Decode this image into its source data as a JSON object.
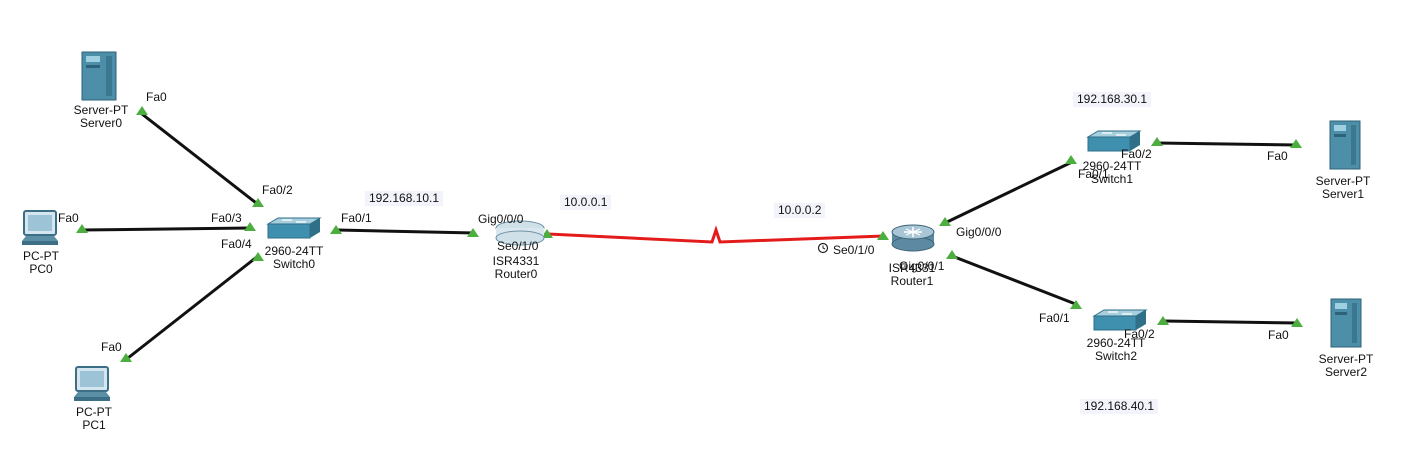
{
  "colors": {
    "cable": "#111111",
    "serial": "#e31b1b",
    "port_ok": "#4cae3e",
    "server_body": "#4d8ea8",
    "switch_body": "#3f8fae",
    "router_body": "#6f93a8"
  },
  "devices": {
    "server0": {
      "type": "Server-PT",
      "name": "Server0",
      "icon": "server-icon"
    },
    "pc0": {
      "type": "PC-PT",
      "name": "PC0",
      "icon": "pc-icon"
    },
    "pc1": {
      "type": "PC-PT",
      "name": "PC1",
      "icon": "pc-icon"
    },
    "switch0": {
      "type": "2960-24TT",
      "name": "Switch0",
      "icon": "switch-icon"
    },
    "router0": {
      "type": "ISR4331",
      "name": "Router0",
      "icon": "router-icon"
    },
    "router1": {
      "type": "ISR4331",
      "name": "Router1",
      "icon": "router-icon"
    },
    "switch1": {
      "type": "2960-24TT",
      "name": "Switch1",
      "icon": "switch-icon"
    },
    "switch2": {
      "type": "2960-24TT",
      "name": "Switch2",
      "icon": "switch-icon"
    },
    "server1": {
      "type": "Server-PT",
      "name": "Server1",
      "icon": "server-icon"
    },
    "server2": {
      "type": "Server-PT",
      "name": "Server2",
      "icon": "server-icon"
    }
  },
  "ports": {
    "server0_fa0": "Fa0",
    "sw0_fa02": "Fa0/2",
    "pc0_fa0": "Fa0",
    "sw0_fa03": "Fa0/3",
    "sw0_fa04": "Fa0/4",
    "pc1_fa0": "Fa0",
    "sw0_fa01": "Fa0/1",
    "r0_gig000": "Gig0/0/0",
    "r0_se010": "Se0/1/0",
    "r1_se010": "Se0/1/0",
    "r1_gig000": "Gig0/0/0",
    "r1_gig001": "Gig0/0/1",
    "sw1_fa01": "Fa0/1",
    "sw1_fa02": "Fa0/2",
    "server1_fa0": "Fa0",
    "sw2_fa01": "Fa0/1",
    "sw2_fa02": "Fa0/2",
    "server2_fa0": "Fa0"
  },
  "networks": {
    "lan0": "192.168.10.1",
    "wan_r0": "10.0.0.1",
    "wan_r1": "10.0.0.2",
    "lan1": "192.168.30.1",
    "lan2": "192.168.40.1"
  },
  "links": [
    {
      "id": "server0-switch0",
      "kind": "copper"
    },
    {
      "id": "pc0-switch0",
      "kind": "copper"
    },
    {
      "id": "pc1-switch0",
      "kind": "copper"
    },
    {
      "id": "switch0-router0",
      "kind": "copper"
    },
    {
      "id": "router0-router1",
      "kind": "serial"
    },
    {
      "id": "router1-switch1",
      "kind": "copper"
    },
    {
      "id": "router1-switch2",
      "kind": "copper"
    },
    {
      "id": "switch1-server1",
      "kind": "copper"
    },
    {
      "id": "switch2-server2",
      "kind": "copper"
    }
  ]
}
